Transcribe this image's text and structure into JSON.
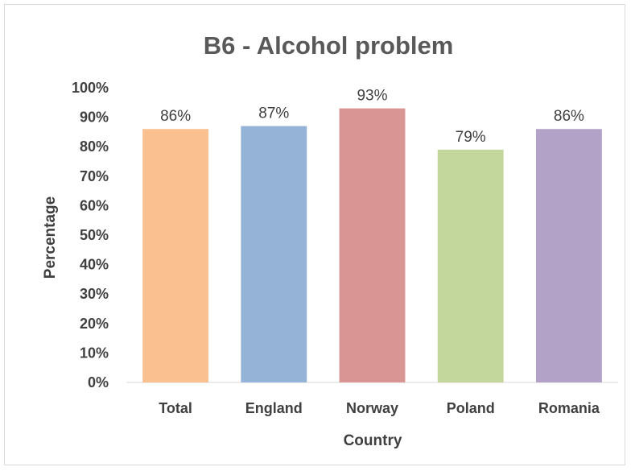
{
  "chart_data": {
    "type": "bar",
    "title": "B6 - Alcohol problem",
    "xlabel": "Country",
    "ylabel": "Percentage",
    "categories": [
      "Total",
      "England",
      "Norway",
      "Poland",
      "Romania"
    ],
    "values": [
      86,
      87,
      93,
      79,
      86
    ],
    "data_labels": [
      "86%",
      "87%",
      "93%",
      "79%",
      "86%"
    ],
    "colors": [
      "#fac090",
      "#95b3d7",
      "#d99594",
      "#c3d69b",
      "#b2a2c7"
    ],
    "ylim": [
      0,
      100
    ],
    "y_ticks": [
      0,
      10,
      20,
      30,
      40,
      50,
      60,
      70,
      80,
      90,
      100
    ],
    "y_tick_labels": [
      "0%",
      "10%",
      "20%",
      "30%",
      "40%",
      "50%",
      "60%",
      "70%",
      "80%",
      "90%",
      "100%"
    ],
    "grid": false,
    "legend": "none"
  }
}
